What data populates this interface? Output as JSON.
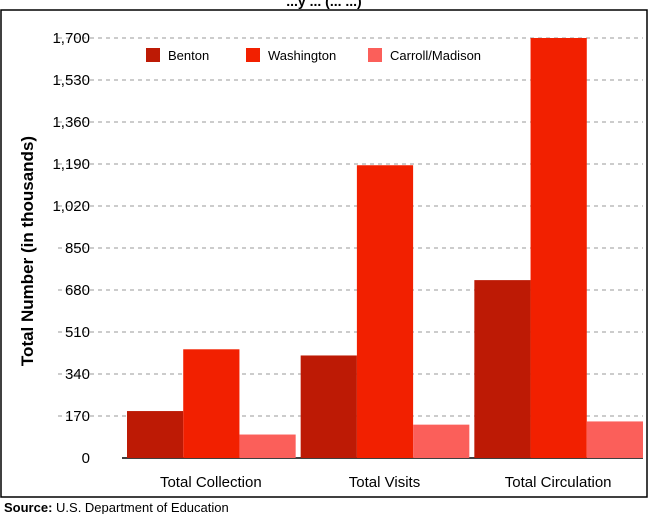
{
  "chart_data": {
    "type": "bar",
    "title": "...y ... (... ...)",
    "ylabel": "Total Number (in thousands)",
    "xlabel": "",
    "categories": [
      "Total Collection",
      "Total Visits",
      "Total Circulation"
    ],
    "series": [
      {
        "name": "Benton",
        "color": "#bd1a05",
        "values": [
          190,
          415,
          720
        ]
      },
      {
        "name": "Washington",
        "color": "#f22000",
        "values": [
          440,
          1185,
          1700
        ]
      },
      {
        "name": "Carroll/Madison",
        "color": "#fb5f5a",
        "values": [
          95,
          135,
          148
        ]
      }
    ],
    "ylim": [
      0,
      1700
    ],
    "yticks": [
      "0",
      "170",
      "340",
      "510",
      "680",
      "850",
      "1,020",
      "1,190",
      "1,360",
      "1,530",
      "1,700"
    ],
    "ytick_values": [
      0,
      170,
      340,
      510,
      680,
      850,
      1020,
      1190,
      1360,
      1530,
      1700
    ],
    "grid": true,
    "legend_position": "top-left"
  },
  "source": {
    "label": "Source:",
    "text": " U.S. Department of Education"
  }
}
